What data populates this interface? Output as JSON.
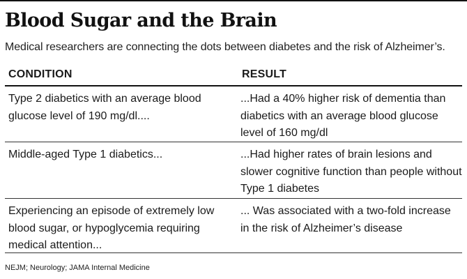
{
  "title": "Blood Sugar and the Brain",
  "subtitle": "Medical researchers are connecting the dots between diabetes and the risk of Alzheimer’s.",
  "table": {
    "headers": [
      "CONDITION",
      "RESULT"
    ],
    "rows": [
      {
        "condition": "Type 2 diabetics with an average blood glucose level of 190 mg/dl....",
        "result": "...Had a 40% higher risk of dementia than diabetics with an average blood glucose level of 160 mg/dl"
      },
      {
        "condition": "Middle-aged Type 1 diabetics...",
        "result": "...Had higher rates of brain lesions and slower cognitive function than people without Type 1 diabetes"
      },
      {
        "condition": "Experiencing an episode of extremely low blood sugar, or hypoglycemia requiring medical attention...",
        "result": "... Was associated with a two-fold increase in the risk of Alzheimer’s disease"
      }
    ]
  },
  "source": "NEJM; Neurology; JAMA Internal Medicine"
}
